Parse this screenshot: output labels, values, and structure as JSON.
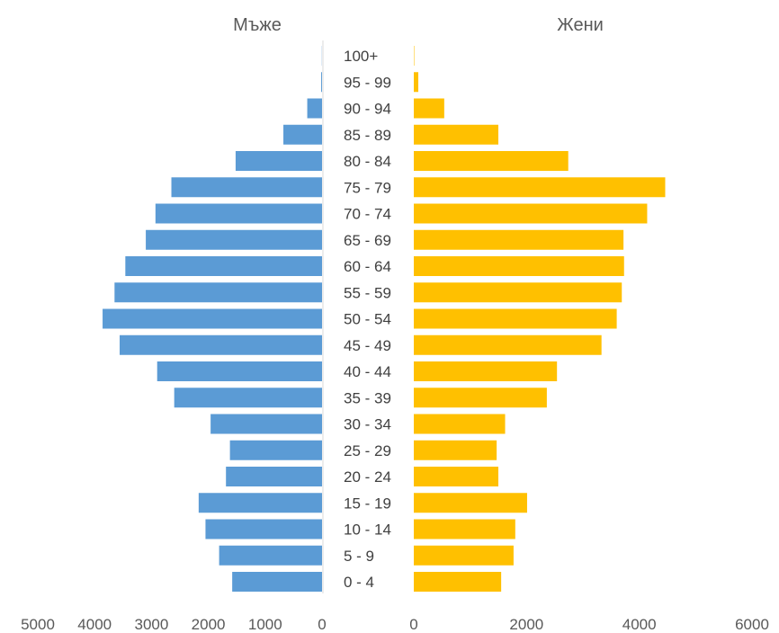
{
  "chart_data": {
    "type": "bar",
    "categories": [
      "0 - 4",
      "5 - 9",
      "10 - 14",
      "15 - 19",
      "20 - 24",
      "25 - 29",
      "30 - 34",
      "35 - 39",
      "40 - 44",
      "45 - 49",
      "50 - 54",
      "55 - 59",
      "60 - 64",
      "65 - 69",
      "70 - 74",
      "75 - 79",
      "80 - 84",
      "85 - 89",
      "90 - 94",
      "95 - 99",
      "100+"
    ],
    "series": [
      {
        "name": "Мъже",
        "color": "#5b9bd5",
        "values": [
          1580,
          1810,
          2050,
          2170,
          1690,
          1620,
          1960,
          2600,
          2900,
          3560,
          3860,
          3650,
          3460,
          3100,
          2930,
          2650,
          1520,
          680,
          260,
          15,
          3
        ]
      },
      {
        "name": "Жени",
        "color": "#ffc000",
        "values": [
          1550,
          1770,
          1800,
          2010,
          1500,
          1470,
          1620,
          2360,
          2540,
          3330,
          3600,
          3690,
          3730,
          3720,
          4140,
          4460,
          2740,
          1500,
          540,
          80,
          8
        ]
      }
    ],
    "left_axis": {
      "ticks": [
        "5000",
        "4000",
        "3000",
        "2000",
        "1000",
        "0"
      ],
      "min": 0,
      "max": 5000,
      "reversed": true
    },
    "right_axis": {
      "ticks": [
        "0",
        "2000",
        "4000",
        "6000"
      ],
      "min": 0,
      "max": 6000
    },
    "grid": false,
    "legend": "none"
  }
}
